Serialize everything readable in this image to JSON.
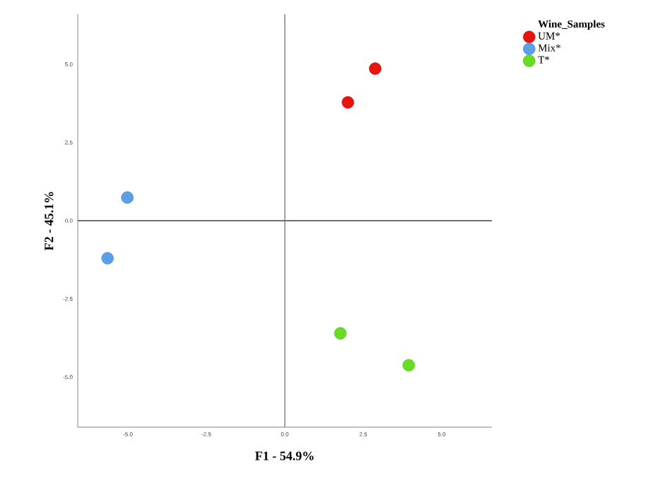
{
  "chart_data": {
    "type": "scatter",
    "xlabel": "F1 - 54.9%",
    "ylabel": "F2 - 45.1%",
    "legend_title": "Wine_Samples",
    "legend": "top right",
    "xlim": [
      -6.6,
      6.6
    ],
    "ylim": [
      -6.6,
      6.6
    ],
    "xticks": [
      {
        "value": -5,
        "label": "-5.0"
      },
      {
        "value": -2.5,
        "label": "-2.5"
      },
      {
        "value": 0,
        "label": "0.0"
      },
      {
        "value": 2.5,
        "label": "2.5"
      },
      {
        "value": 5,
        "label": "5.0"
      }
    ],
    "yticks": [
      {
        "value": -5,
        "label": "-5.0"
      },
      {
        "value": -2.5,
        "label": "-2.5"
      },
      {
        "value": 0,
        "label": "0.0"
      },
      {
        "value": 2.5,
        "label": "2.5"
      },
      {
        "value": 5,
        "label": "5.0"
      }
    ],
    "ref_lines": [
      {
        "axis": "x",
        "value": 0,
        "color": "#8c8c8c"
      },
      {
        "axis": "y",
        "value": 0,
        "color": "#707070"
      }
    ],
    "series": [
      {
        "name": "UM*",
        "color": "#e8140f",
        "x": [
          2.88,
          2.01
        ],
        "values": [
          4.86,
          3.78
        ]
      },
      {
        "name": "Mix*",
        "color": "#5aa0e6",
        "x": [
          -5.02,
          -5.65
        ],
        "values": [
          0.74,
          -1.2
        ]
      },
      {
        "name": "T*",
        "color": "#66dd22",
        "x": [
          1.77,
          3.95
        ],
        "values": [
          -3.6,
          -4.62
        ]
      }
    ]
  }
}
